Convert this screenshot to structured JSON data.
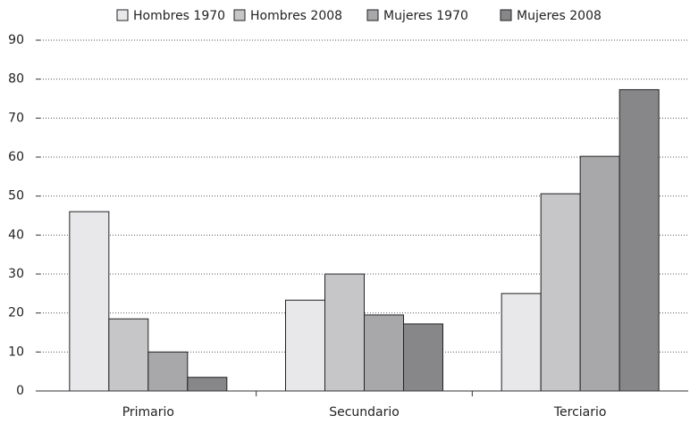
{
  "chart_data": {
    "type": "bar",
    "categories": [
      "Primario",
      "Secundario",
      "Terciario"
    ],
    "series": [
      {
        "name": "Hombres 1970",
        "color": "#e8e8ea",
        "values": [
          46,
          23.3,
          25
        ]
      },
      {
        "name": "Hombres 2008",
        "color": "#c6c6c8",
        "values": [
          18.5,
          30,
          50.6
        ]
      },
      {
        "name": "Mujeres 1970",
        "color": "#a8a8aa",
        "values": [
          10,
          19.5,
          60.2
        ]
      },
      {
        "name": "Mujeres 2008",
        "color": "#87878a",
        "values": [
          3.5,
          17.2,
          77.3
        ]
      }
    ],
    "ylim": [
      0,
      90
    ],
    "yticks": [
      0,
      10,
      20,
      30,
      40,
      50,
      60,
      70,
      80,
      90
    ],
    "grid": true,
    "legend": "top"
  }
}
